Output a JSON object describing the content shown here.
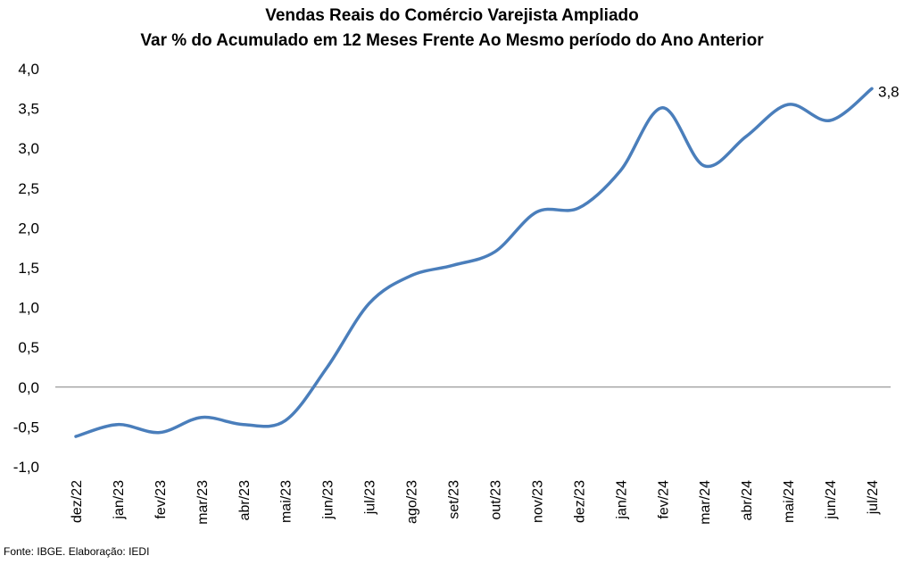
{
  "chart_data": {
    "type": "line",
    "title": "Vendas Reais do Comércio Varejista Ampliado",
    "subtitle": "Var % do Acumulado em 12 Meses Frente Ao Mesmo período do Ano Anterior",
    "xlabel": "",
    "ylabel": "",
    "categories": [
      "dez/22",
      "jan/23",
      "fev/23",
      "mar/23",
      "abr/23",
      "mai/23",
      "jun/23",
      "jul/23",
      "ago/23",
      "set/23",
      "out/23",
      "nov/23",
      "dez/23",
      "jan/24",
      "fev/24",
      "mar/24",
      "abr/24",
      "mai/24",
      "jun/24",
      "jul/24"
    ],
    "series": [
      {
        "values": [
          -0.62,
          -0.47,
          -0.57,
          -0.38,
          -0.47,
          -0.42,
          0.25,
          1.05,
          1.4,
          1.53,
          1.7,
          2.2,
          2.25,
          2.72,
          3.51,
          2.78,
          3.15,
          3.55,
          3.35,
          3.75
        ],
        "color": "#4A7EBB"
      }
    ],
    "ylim": [
      -1.0,
      4.0
    ],
    "yticks": [
      "-1,0",
      "-0,5",
      "0,0",
      "0,5",
      "1,0",
      "1,5",
      "2,0",
      "2,5",
      "3,0",
      "3,5",
      "4,0"
    ],
    "grid": false,
    "legend": "none",
    "last_label": "3,8"
  },
  "source": "Fonte: IBGE. Elaboração: IEDI"
}
